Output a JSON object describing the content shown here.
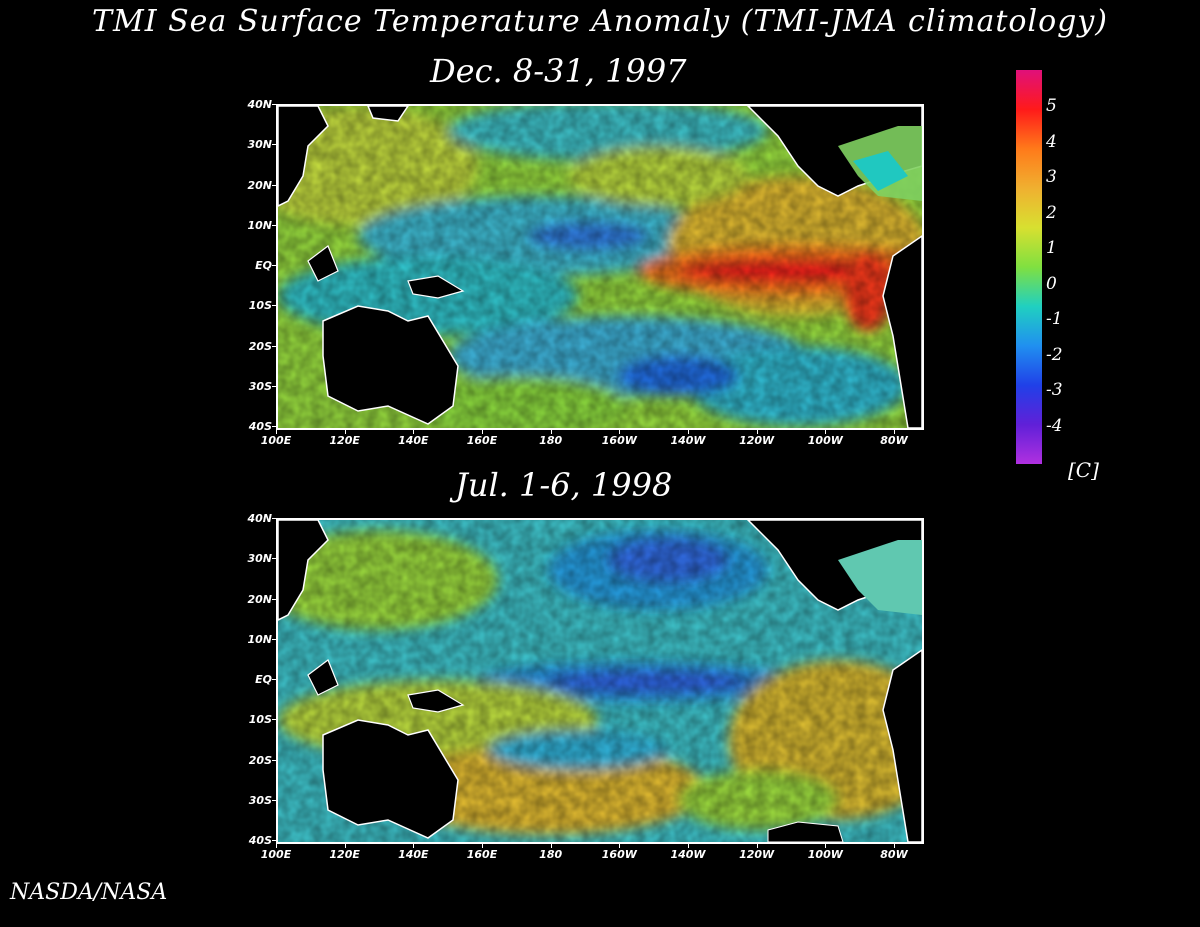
{
  "title": "TMI Sea Surface Temperature Anomaly (TMI-JMA climatology)",
  "panels": [
    {
      "title": "Dec. 8-31, 1997"
    },
    {
      "title": "Jul. 1-6, 1998"
    }
  ],
  "axes": {
    "lat_labels": [
      "40N",
      "30N",
      "20N",
      "10N",
      "EQ",
      "10S",
      "20S",
      "30S",
      "40S"
    ],
    "lon_labels": [
      "100E",
      "120E",
      "140E",
      "160E",
      "180",
      "160W",
      "140W",
      "120W",
      "100W",
      "80W"
    ]
  },
  "colorbar": {
    "labels": [
      "5",
      "4",
      "3",
      "2",
      "1",
      "0",
      "-1",
      "-2",
      "-3",
      "-4"
    ],
    "unit": "[C]",
    "colors": [
      "#e0107a",
      "#ff1a1a",
      "#ff7a1a",
      "#f0b030",
      "#d8e030",
      "#80e040",
      "#20d0c0",
      "#2090f0",
      "#2040e8",
      "#6020d8",
      "#b030e0"
    ]
  },
  "credit": "NASDA/NASA"
}
